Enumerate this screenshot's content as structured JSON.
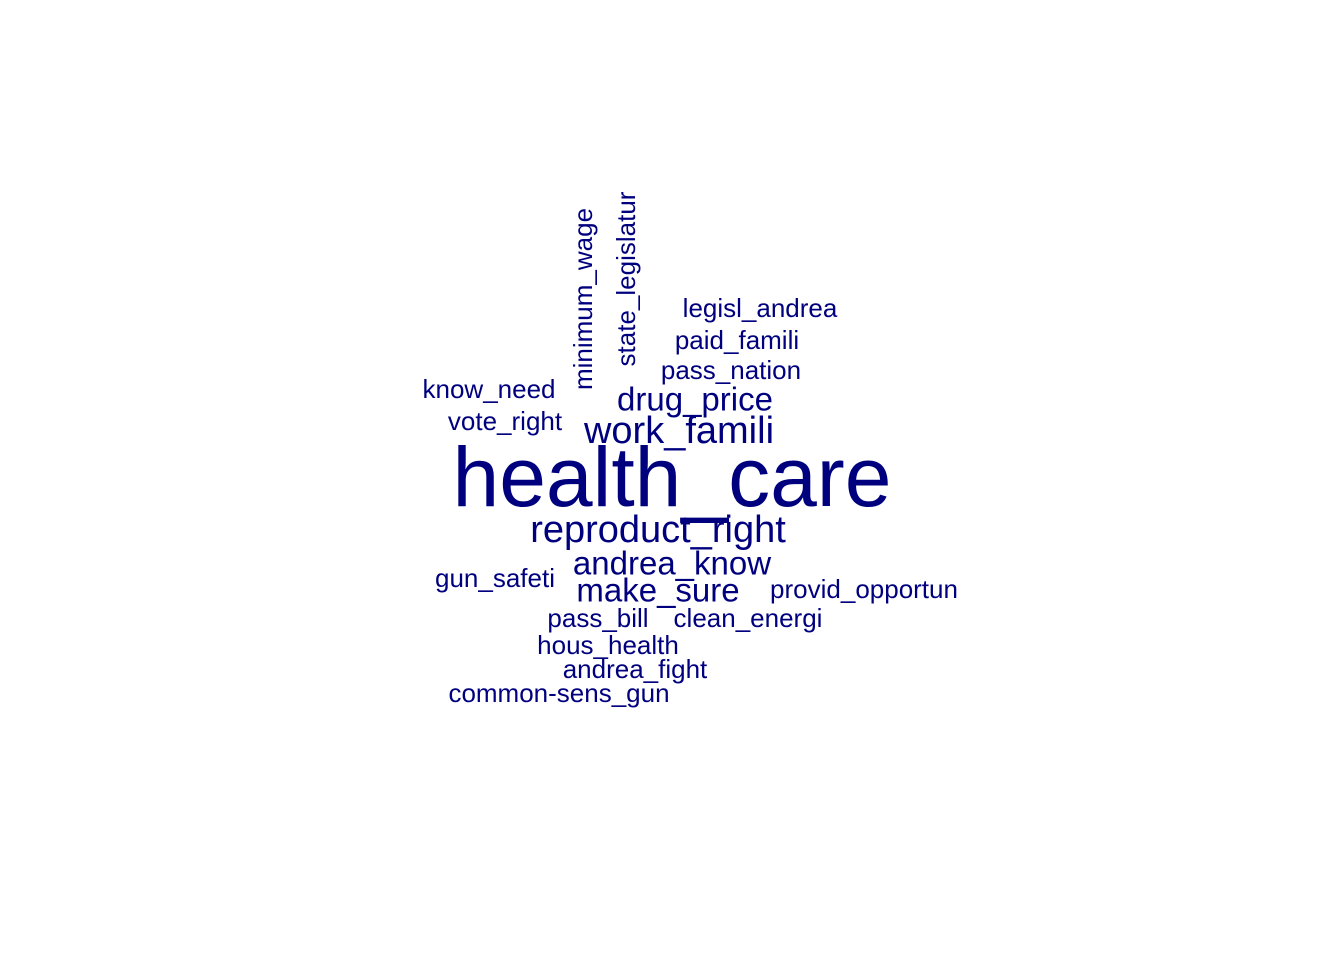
{
  "wordcloud": {
    "color": "#00007F",
    "words": [
      {
        "text": "health_care",
        "rank": 1,
        "rotated": false
      },
      {
        "text": "reproduct_right",
        "rank": 2,
        "rotated": false
      },
      {
        "text": "work_famili",
        "rank": 2,
        "rotated": false
      },
      {
        "text": "drug_price",
        "rank": 3,
        "rotated": false
      },
      {
        "text": "andrea_know",
        "rank": 3,
        "rotated": false
      },
      {
        "text": "make_sure",
        "rank": 3,
        "rotated": false
      },
      {
        "text": "minimum_wage",
        "rank": 4,
        "rotated": true
      },
      {
        "text": "state_legislatur",
        "rank": 4,
        "rotated": true
      },
      {
        "text": "legisl_andrea",
        "rank": 4,
        "rotated": false
      },
      {
        "text": "paid_famili",
        "rank": 4,
        "rotated": false
      },
      {
        "text": "pass_nation",
        "rank": 4,
        "rotated": false
      },
      {
        "text": "know_need",
        "rank": 4,
        "rotated": false
      },
      {
        "text": "vote_right",
        "rank": 4,
        "rotated": false
      },
      {
        "text": "gun_safeti",
        "rank": 4,
        "rotated": false
      },
      {
        "text": "provid_opportun",
        "rank": 4,
        "rotated": false
      },
      {
        "text": "pass_bill",
        "rank": 4,
        "rotated": false
      },
      {
        "text": "clean_energi",
        "rank": 4,
        "rotated": false
      },
      {
        "text": "hous_health",
        "rank": 4,
        "rotated": false
      },
      {
        "text": "andrea_fight",
        "rank": 4,
        "rotated": false
      },
      {
        "text": "common-sens_gun",
        "rank": 4,
        "rotated": false
      }
    ]
  }
}
